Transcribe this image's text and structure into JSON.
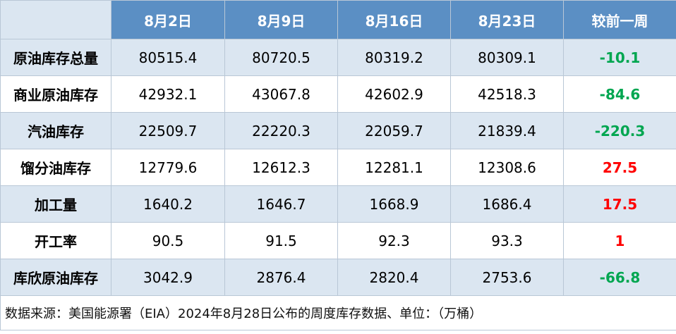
{
  "header": {
    "corner": "",
    "columns": [
      "8月2日",
      "8月9日",
      "8月16日",
      "8月23日",
      "较前一周"
    ]
  },
  "rows": [
    {
      "label": "原油库存总量",
      "values": [
        "80515.4",
        "80720.5",
        "80319.2",
        "80309.1"
      ],
      "change": "-10.1",
      "change_color": "#00a650"
    },
    {
      "label": "商业原油库存",
      "values": [
        "42932.1",
        "43067.8",
        "42602.9",
        "42518.3"
      ],
      "change": "-84.6",
      "change_color": "#00a650"
    },
    {
      "label": "汽油库存",
      "values": [
        "22509.7",
        "22220.3",
        "22059.7",
        "21839.4"
      ],
      "change": "-220.3",
      "change_color": "#00a650"
    },
    {
      "label": "馏分油库存",
      "values": [
        "12779.6",
        "12612.3",
        "12281.1",
        "12308.6"
      ],
      "change": "27.5",
      "change_color": "#ff0000"
    },
    {
      "label": "加工量",
      "values": [
        "1640.2",
        "1646.7",
        "1668.9",
        "1686.4"
      ],
      "change": "17.5",
      "change_color": "#ff0000"
    },
    {
      "label": "开工率",
      "values": [
        "90.5",
        "91.5",
        "92.3",
        "93.3"
      ],
      "change": "1",
      "change_color": "#ff0000"
    },
    {
      "label": "库欣原油库存",
      "values": [
        "3042.9",
        "2876.4",
        "2820.4",
        "2753.6"
      ],
      "change": "-66.8",
      "change_color": "#00a650"
    }
  ],
  "footnote": "数据来源：美国能源署（EIA）2024年8月28日公布的周度库存数据、单位：（万桶）"
}
